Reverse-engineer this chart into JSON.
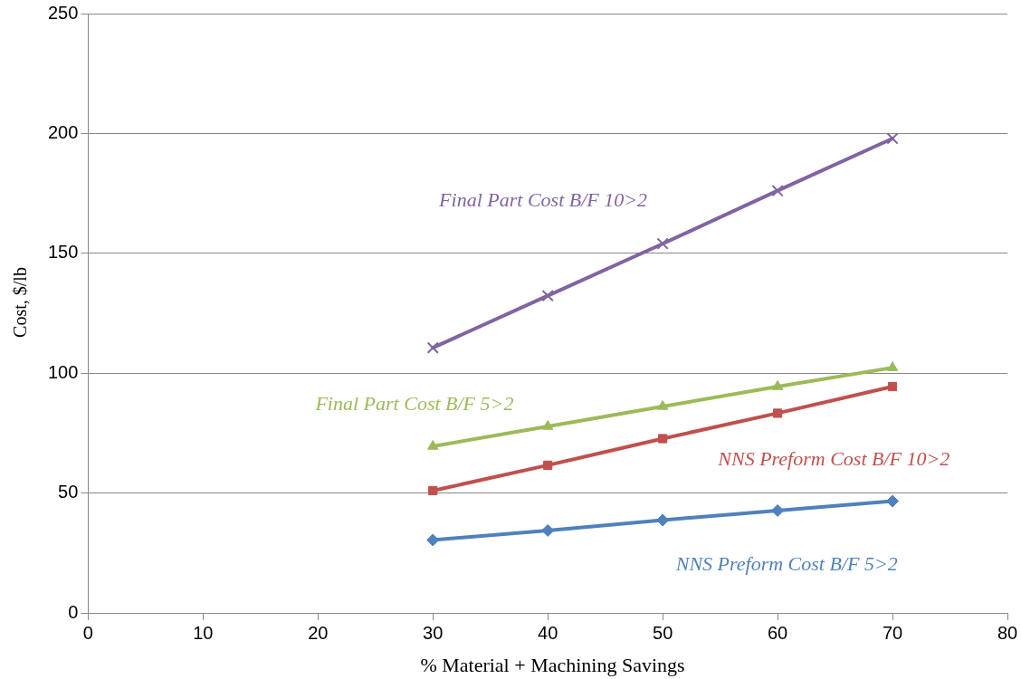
{
  "chart_data": {
    "type": "line",
    "xlabel": "% Material + Machining Savings",
    "ylabel": "Cost, $/lb",
    "x": [
      30,
      40,
      50,
      60,
      70
    ],
    "xlim": [
      0,
      80
    ],
    "xticks": [
      0,
      10,
      20,
      30,
      40,
      50,
      60,
      70,
      80
    ],
    "ylim": [
      0,
      250
    ],
    "yticks": [
      0,
      50,
      100,
      150,
      200,
      250
    ],
    "grid": "y",
    "legend": false,
    "series": [
      {
        "name": "NNS Preform Cost B/F 5>2",
        "color": "#4f81bd",
        "marker": "diamond",
        "values": [
          30.4,
          34.4,
          38.7,
          42.7,
          46.6
        ]
      },
      {
        "name": "NNS Preform Cost B/F 10>2",
        "color": "#c0504d",
        "marker": "square",
        "values": [
          51,
          61.6,
          72.7,
          83.3,
          94.4
        ]
      },
      {
        "name": "Final Part Cost B/F 5>2",
        "color": "#9bbb59",
        "marker": "triangle",
        "values": [
          69.5,
          77.8,
          86.1,
          94.4,
          102.3
        ]
      },
      {
        "name": "Final Part Cost B/F 10>2",
        "color": "#8064a2",
        "marker": "cross",
        "values": [
          110.6,
          132.3,
          154,
          176.1,
          197.9
        ]
      }
    ]
  }
}
